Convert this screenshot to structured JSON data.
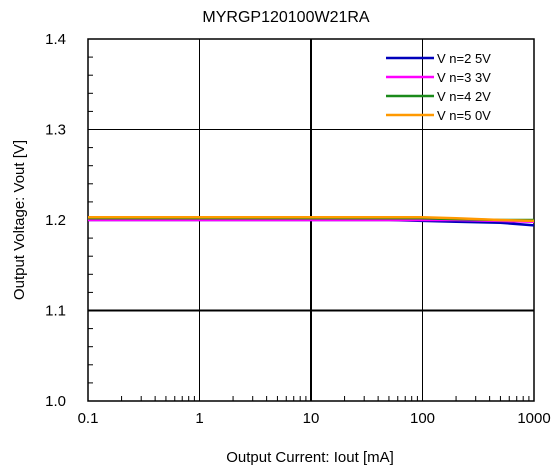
{
  "chart_data": {
    "type": "line",
    "title": "MYRGP120100W21RA",
    "xlabel": "Output  Current: Iout [mA]",
    "ylabel": "Output  Voltage: Vout [V]",
    "x_scale": "log",
    "xlim": [
      0.1,
      1000
    ],
    "ylim": [
      1.0,
      1.4
    ],
    "x_ticks": [
      0.1,
      1,
      10,
      100,
      1000
    ],
    "x_tick_labels": [
      "0.1",
      "1",
      "10",
      "100",
      "1000"
    ],
    "y_ticks": [
      1.0,
      1.1,
      1.2,
      1.3,
      1.4
    ],
    "y_tick_labels": [
      "1.0",
      "1.1",
      "1.2",
      "1.3",
      "1.4"
    ],
    "grid": true,
    "legend_position": "top-right",
    "series": [
      {
        "name": "V n=2 5V",
        "color": "#0000bb",
        "x": [
          0.1,
          1,
          10,
          50,
          100,
          200,
          500,
          1000
        ],
        "y": [
          1.2,
          1.2,
          1.2,
          1.2,
          1.199,
          1.198,
          1.197,
          1.194
        ]
      },
      {
        "name": "V n=3 3V",
        "color": "#ff00ff",
        "x": [
          0.1,
          1,
          10,
          50,
          100,
          200,
          500,
          1000
        ],
        "y": [
          1.2,
          1.2,
          1.2,
          1.2,
          1.2,
          1.2,
          1.199,
          1.198
        ]
      },
      {
        "name": "V n=4 2V",
        "color": "#1a8a1a",
        "x": [
          0.1,
          1,
          10,
          50,
          100,
          200,
          500,
          1000
        ],
        "y": [
          1.202,
          1.202,
          1.202,
          1.202,
          1.202,
          1.201,
          1.2,
          1.2
        ]
      },
      {
        "name": "V n=5 0V",
        "color": "#ff9900",
        "x": [
          0.1,
          1,
          10,
          50,
          100,
          200,
          500,
          1000
        ],
        "y": [
          1.203,
          1.203,
          1.203,
          1.203,
          1.203,
          1.202,
          1.2,
          1.199
        ]
      }
    ]
  }
}
